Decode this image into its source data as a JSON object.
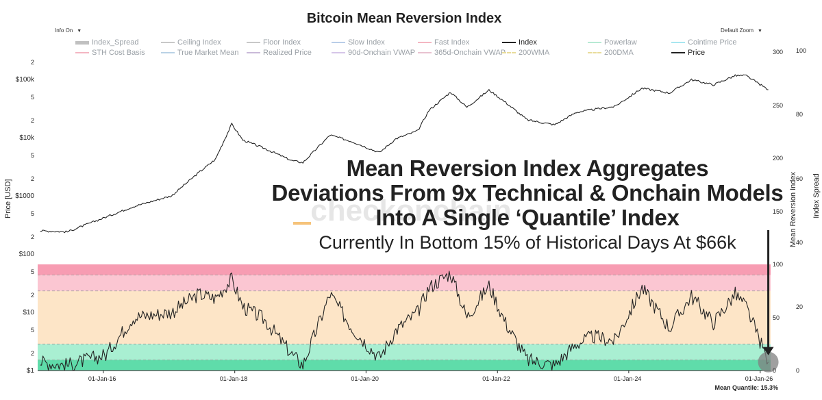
{
  "title": "Bitcoin Mean Reversion Index",
  "controls": {
    "info_label": "Info On",
    "zoom_label": "Default Zoom",
    "caret": "▼"
  },
  "legend": [
    {
      "label": "Index_Spread",
      "color": "#c0c0c0",
      "active": false,
      "dash": false
    },
    {
      "label": "Ceiling Index",
      "color": "#c8c8c8",
      "active": false,
      "dash": false
    },
    {
      "label": "Floor Index",
      "color": "#c8c8c8",
      "active": false,
      "dash": false
    },
    {
      "label": "Slow Index",
      "color": "#b9cde8",
      "active": false,
      "dash": false
    },
    {
      "label": "Fast Index",
      "color": "#f4b6c2",
      "active": false,
      "dash": false
    },
    {
      "label": "Index",
      "color": "#222222",
      "active": true,
      "dash": false
    },
    {
      "label": "Powerlaw",
      "color": "#b7ead3",
      "active": false,
      "dash": false
    },
    {
      "label": "Cointime Price",
      "color": "#a8e6f0",
      "active": false,
      "dash": false
    },
    {
      "label": "STH Cost Basis",
      "color": "#f4b6c2",
      "active": false,
      "dash": false
    },
    {
      "label": "True Market Mean",
      "color": "#b9d2e6",
      "active": false,
      "dash": false
    },
    {
      "label": "Realized Price",
      "color": "#c9b9d8",
      "active": false,
      "dash": false
    },
    {
      "label": "90d-Onchain VWAP",
      "color": "#d6c6e8",
      "active": false,
      "dash": false
    },
    {
      "label": "365d-Onchain VWAP",
      "color": "#e8c2d0",
      "active": false,
      "dash": false
    },
    {
      "label": "200WMA",
      "color": "#e8dc9a",
      "active": false,
      "dash": true
    },
    {
      "label": "200DMA",
      "color": "#e8dc9a",
      "active": false,
      "dash": true
    },
    {
      "label": "Price",
      "color": "#222222",
      "active": true,
      "dash": false
    }
  ],
  "axes": {
    "price_axis_title": "Price [USD]",
    "mri_axis_title": "Mean Reversion Index",
    "spread_axis_title": "Index Spread",
    "price_ticks": [
      "2",
      "$100k",
      "5",
      "2",
      "$10k",
      "5",
      "2",
      "$1000",
      "5",
      "2",
      "$100",
      "5",
      "2",
      "$10",
      "5",
      "2",
      "$1"
    ],
    "mri_ticks": [
      "300",
      "250",
      "200",
      "150",
      "100",
      "50",
      "0"
    ],
    "spread_ticks": [
      "100",
      "80",
      "60",
      "40",
      "20",
      "0"
    ],
    "x_ticks": [
      "01-Jan-16",
      "01-Jan-18",
      "01-Jan-20",
      "01-Jan-22",
      "01-Jan-24",
      "01-Jan-26"
    ]
  },
  "watermark": "checkonchain",
  "overlay": {
    "line1": "Mean Reversion Index Aggregates",
    "line2": "Deviations From 9x Technical & Onchain Models",
    "line3": "Into A Single ‘Quantile’ Index",
    "line4": "Currently In Bottom 15% of Historical Days At $66k"
  },
  "footer": "Mean Quantile: 15.3%",
  "colors": {
    "band_top": "#f79cb2",
    "band_upper": "#fbc6d2",
    "band_mid": "#fde5c7",
    "band_low": "#a9efd2",
    "band_bottom": "#5fdcaa",
    "line": "#222222",
    "marker": "#808080"
  },
  "chart_data": {
    "type": "line",
    "title": "Bitcoin Mean Reversion Index",
    "x_range": [
      "2015-01-01",
      "2026-02-28"
    ],
    "y_scale": "log",
    "ylabel": "Price [USD]",
    "grid": false,
    "legend_position": "top",
    "series": [
      {
        "name": "Price",
        "axis": "Price [USD] (log)",
        "x": [
          "2015-01",
          "2015-06",
          "2016-01",
          "2016-06",
          "2017-01",
          "2017-06",
          "2017-09",
          "2017-12",
          "2018-02",
          "2018-06",
          "2018-11",
          "2019-01",
          "2019-06",
          "2019-10",
          "2020-03",
          "2020-06",
          "2020-10",
          "2020-12",
          "2021-04",
          "2021-07",
          "2021-11",
          "2022-02",
          "2022-06",
          "2022-11",
          "2023-03",
          "2023-06",
          "2023-10",
          "2024-03",
          "2024-08",
          "2024-12",
          "2025-04",
          "2025-08",
          "2025-10",
          "2026-02"
        ],
        "values": [
          250,
          240,
          430,
          650,
          1000,
          2500,
          4200,
          17000,
          9000,
          6500,
          4000,
          3700,
          11000,
          8500,
          5500,
          9500,
          13000,
          29000,
          60000,
          33000,
          65000,
          40000,
          20000,
          16500,
          27000,
          30000,
          34000,
          70000,
          58000,
          98000,
          80000,
          115000,
          115000,
          66000
        ]
      },
      {
        "name": "Index",
        "axis": "Mean Reversion Index",
        "x": [
          "2015-01",
          "2015-06",
          "2016-01",
          "2016-06",
          "2017-01",
          "2017-06",
          "2017-09",
          "2017-12",
          "2018-02",
          "2018-06",
          "2018-11",
          "2019-01",
          "2019-06",
          "2019-10",
          "2020-03",
          "2020-06",
          "2020-10",
          "2020-12",
          "2021-04",
          "2021-07",
          "2021-11",
          "2022-02",
          "2022-06",
          "2022-11",
          "2023-03",
          "2023-06",
          "2023-10",
          "2024-03",
          "2024-08",
          "2024-12",
          "2025-04",
          "2025-08",
          "2025-10",
          "2026-02"
        ],
        "values": [
          8,
          5,
          15,
          50,
          55,
          72,
          68,
          86,
          60,
          48,
          15,
          5,
          72,
          40,
          12,
          38,
          55,
          78,
          92,
          50,
          80,
          45,
          10,
          5,
          25,
          32,
          28,
          78,
          40,
          70,
          45,
          72,
          60,
          8
        ]
      }
    ],
    "quantile_bands": [
      0,
      10,
      25,
      75,
      90,
      100
    ],
    "mean_quantile": 15.3
  }
}
